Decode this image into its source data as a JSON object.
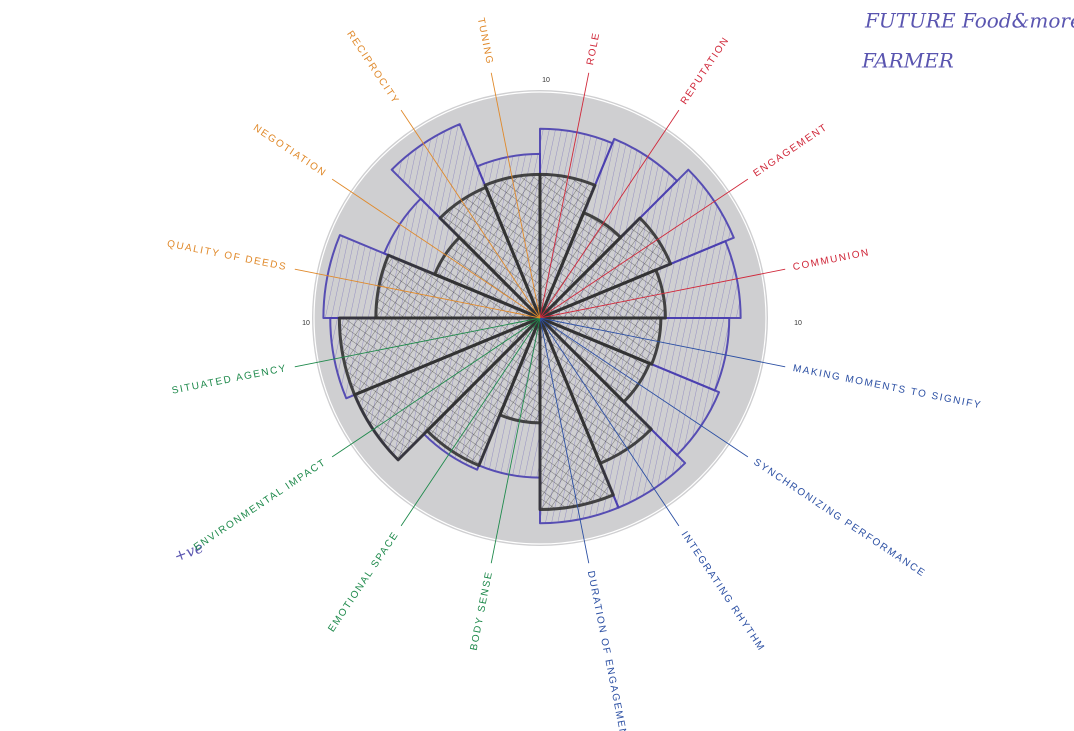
{
  "chart_data": {
    "type": "polar_area",
    "categories": [
      "ROLE",
      "REPUTATION",
      "ENGAGEMENT",
      "COMMUNION",
      "MAKING MOMENTS TO SIGNIFY",
      "SYNCHRONIZING PERFORMANCE",
      "INTEGRATING RHYTHM",
      "DURATION OF ENGAGEMENT",
      "BODY SENSE",
      "EMOTIONAL SPACE",
      "ENVIRONMENTAL IMPACT",
      "SITUATED AGENCY",
      "QUALITY OF DEEDS",
      "NEGOTIATION",
      "RECIPROCITY",
      "TUNING"
    ],
    "label_colors": [
      "#d0283a",
      "#d0283a",
      "#d0283a",
      "#d0283a",
      "#2b4fa3",
      "#2b4fa3",
      "#2b4fa3",
      "#2b4fa3",
      "#1f8a4c",
      "#1f8a4c",
      "#1f8a4c",
      "#1f8a4c",
      "#e0892a",
      "#e0892a",
      "#e0892a",
      "#e0892a"
    ],
    "series": [
      {
        "color": "#4a3fb0",
        "values": [
          8.3,
          8.5,
          9.2,
          8.8,
          8.3,
          8.5,
          9,
          9,
          7,
          7.2,
          8.8,
          9.2,
          9.5,
          7.4,
          9.2,
          7.2
        ]
      },
      {
        "color": "#333333",
        "values": [
          6.3,
          5,
          6.2,
          5.5,
          5.3,
          5.2,
          6.9,
          8.4,
          4.6,
          7,
          8.8,
          8.8,
          7.2,
          5,
          6.2,
          6.3
        ]
      }
    ],
    "ylim": [
      0,
      10
    ],
    "yticks": [
      10
    ],
    "annotations": [
      "FUTURE Food&more",
      "FARMER",
      "+ve"
    ]
  }
}
